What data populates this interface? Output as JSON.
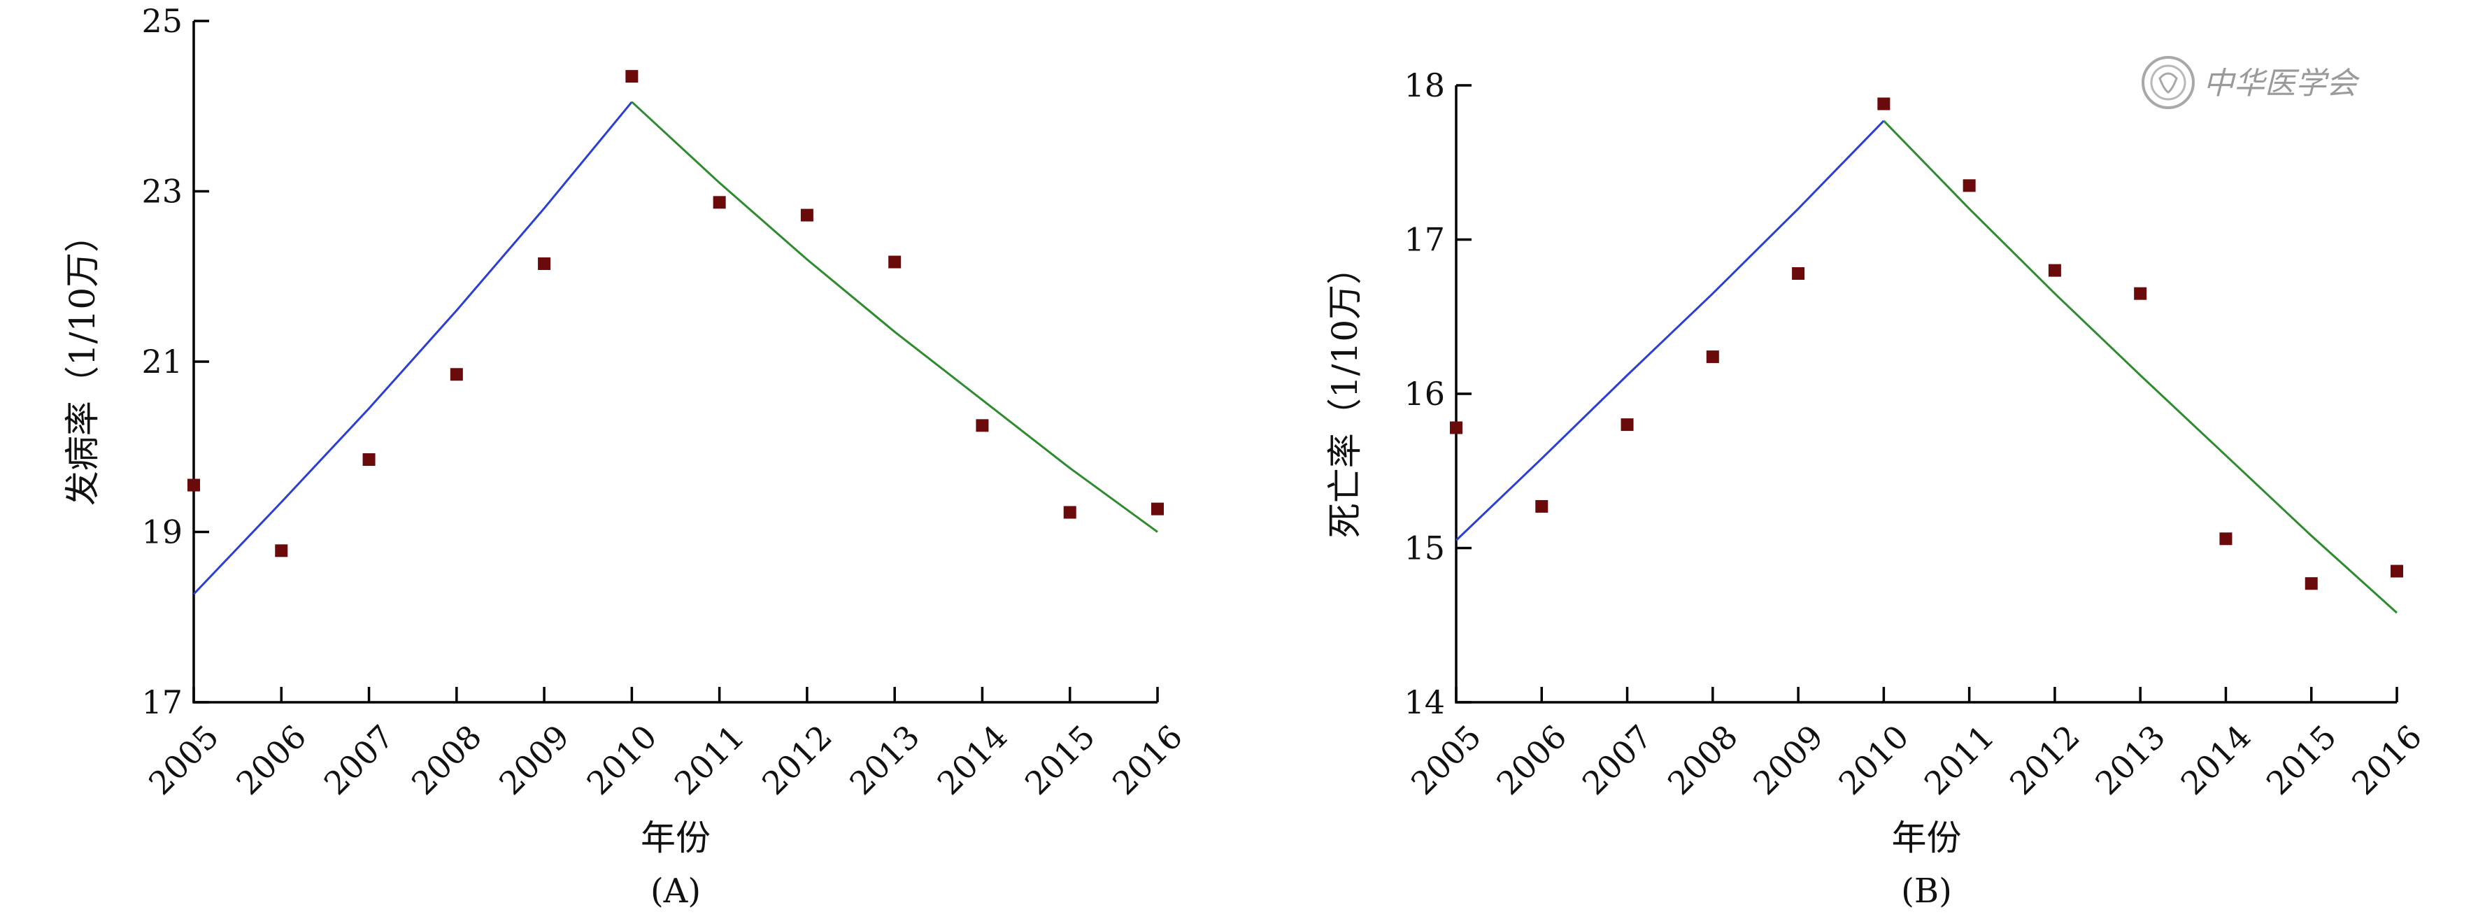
{
  "chart_data": [
    {
      "type": "scatter",
      "panel_label": "(A)",
      "xlabel": "年份",
      "ylabel": "发病率（1/10万）",
      "categories": [
        "2005",
        "2006",
        "2007",
        "2008",
        "2009",
        "2010",
        "2011",
        "2012",
        "2013",
        "2014",
        "2015",
        "2016"
      ],
      "ylim": [
        17,
        25
      ],
      "yticks": [
        17,
        19,
        21,
        23,
        25
      ],
      "series": [
        {
          "kind": "points",
          "color": "#6b0a0a",
          "values": [
            19.55,
            18.78,
            19.85,
            20.85,
            22.15,
            24.35,
            22.87,
            22.72,
            22.17,
            20.25,
            19.23,
            19.27
          ]
        },
        {
          "kind": "line",
          "color": "#2b3fd6",
          "x": [
            "2005",
            "2006",
            "2007",
            "2008",
            "2009",
            "2010"
          ],
          "values": [
            18.27,
            19.35,
            20.45,
            21.6,
            22.8,
            24.05
          ]
        },
        {
          "kind": "line",
          "color": "#2e8b2e",
          "x": [
            "2010",
            "2011",
            "2012",
            "2013",
            "2014",
            "2015",
            "2016"
          ],
          "values": [
            24.05,
            23.1,
            22.2,
            21.35,
            20.55,
            19.75,
            19.0
          ]
        }
      ]
    },
    {
      "type": "scatter",
      "panel_label": "(B)",
      "xlabel": "年份",
      "ylabel": "死亡率（1/10万）",
      "categories": [
        "2005",
        "2006",
        "2007",
        "2008",
        "2009",
        "2010",
        "2011",
        "2012",
        "2013",
        "2014",
        "2015",
        "2016"
      ],
      "ylim": [
        14,
        18
      ],
      "yticks": [
        14,
        15,
        16,
        17,
        18
      ],
      "series": [
        {
          "kind": "points",
          "color": "#6b0a0a",
          "values": [
            15.78,
            15.27,
            15.8,
            16.24,
            16.78,
            17.88,
            17.35,
            16.8,
            16.65,
            15.06,
            14.77,
            14.85
          ]
        },
        {
          "kind": "line",
          "color": "#2b3fd6",
          "x": [
            "2005",
            "2006",
            "2007",
            "2008",
            "2009",
            "2010"
          ],
          "values": [
            15.05,
            15.58,
            16.12,
            16.65,
            17.2,
            17.77
          ]
        },
        {
          "kind": "line",
          "color": "#2e8b2e",
          "x": [
            "2010",
            "2011",
            "2012",
            "2013",
            "2014",
            "2015",
            "2016"
          ],
          "values": [
            17.77,
            17.2,
            16.65,
            16.12,
            15.6,
            15.08,
            14.58
          ]
        }
      ]
    }
  ],
  "watermark": {
    "text": "中华医学会",
    "icon": "society-seal-icon"
  }
}
